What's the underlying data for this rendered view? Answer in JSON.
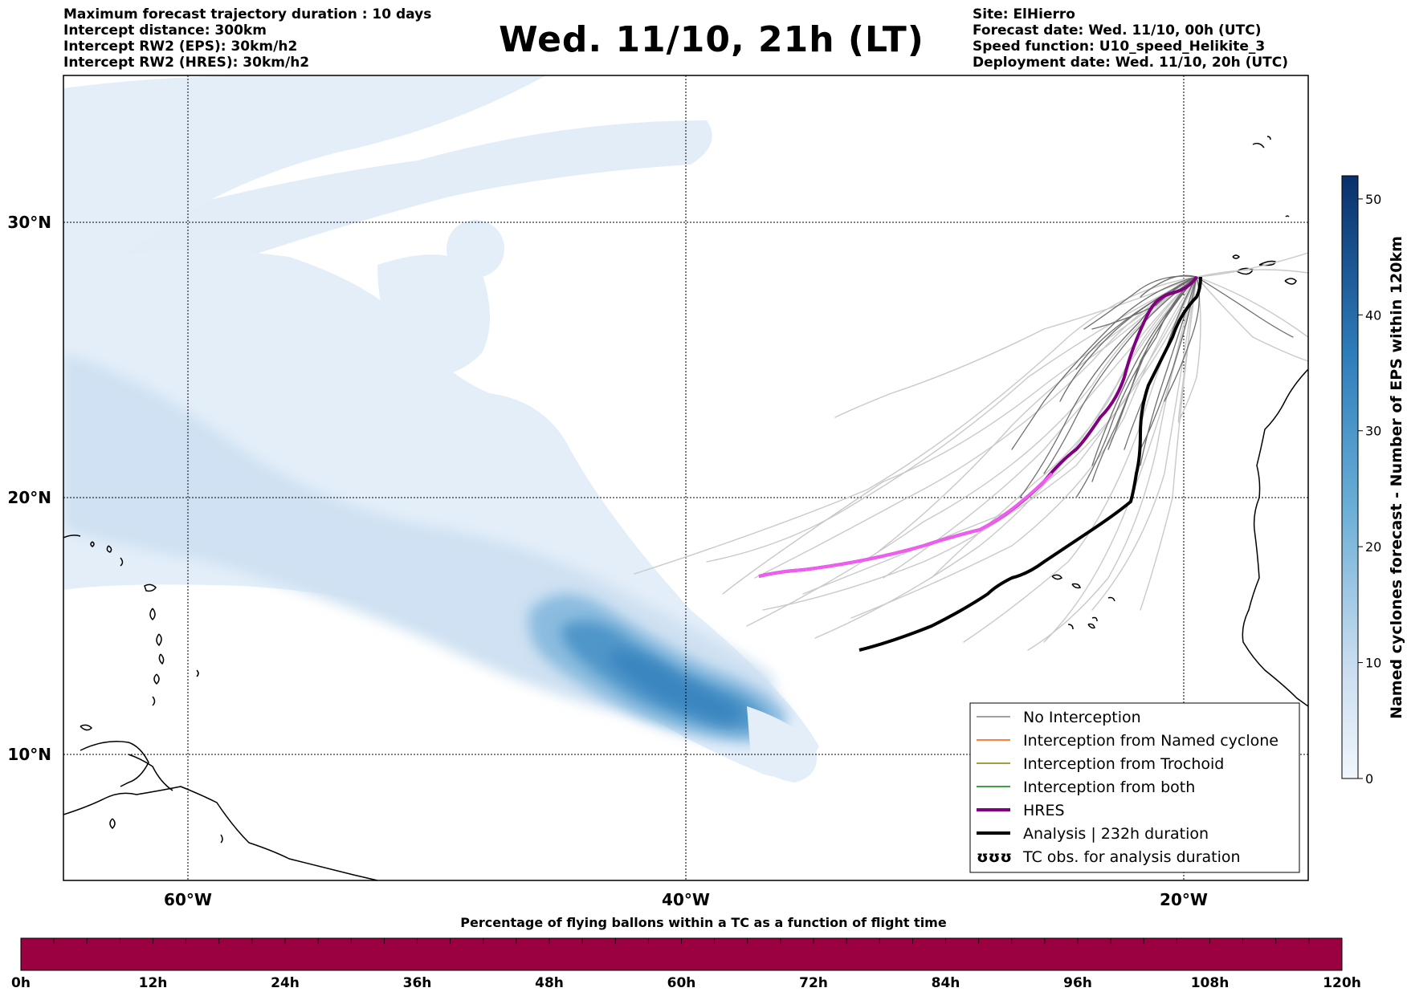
{
  "header": {
    "left_lines": [
      "Maximum forecast trajectory duration : 10 days",
      "Intercept distance: 300km",
      "Intercept RW2 (EPS):  30km/h2",
      "Intercept RW2 (HRES): 30km/h2"
    ],
    "title": "Wed. 11/10, 21h (LT)",
    "right_lines": [
      "Site: ElHierro",
      "Forecast date: Wed. 11/10, 00h (UTC)",
      "Speed function: U10_speed_Helikite_3",
      "Deployment date: Wed. 11/10, 20h (UTC)"
    ]
  },
  "map": {
    "lat_labels": [
      "30°N",
      "20°N",
      "10°N"
    ],
    "lon_labels": [
      "60°W",
      "40°W",
      "20°W"
    ],
    "legend": [
      {
        "label": "No Interception",
        "color": "#808080",
        "style": "thin"
      },
      {
        "label": "Interception from Named cyclone",
        "color": "#ff5500",
        "style": "thin"
      },
      {
        "label": "Interception from Trochoid",
        "color": "#808000",
        "style": "thin"
      },
      {
        "label": "Interception from both",
        "color": "#008000",
        "style": "thin"
      },
      {
        "label": "HRES",
        "color": "#800080",
        "style": "thick"
      },
      {
        "label": "Analysis | 232h duration",
        "color": "#000000",
        "style": "thick"
      },
      {
        "label": "TC obs. for analysis duration",
        "color": "#000000",
        "style": "symbol",
        "symbol": "ʊʊʊ"
      }
    ]
  },
  "colorbar": {
    "label": "Named cyclones forecast - Number of EPS within 120km",
    "ticks": [
      "0",
      "10",
      "20",
      "30",
      "40",
      "50"
    ],
    "colors": {
      "low": "#e3eef9",
      "mid": "#6aaed6",
      "high": "#08306b"
    }
  },
  "timeline": {
    "title": "Percentage of flying ballons within a TC as a function of flight time",
    "color": "#9b0040",
    "ticks": [
      "0h",
      "12h",
      "24h",
      "36h",
      "48h",
      "60h",
      "72h",
      "84h",
      "96h",
      "108h",
      "120h"
    ]
  }
}
